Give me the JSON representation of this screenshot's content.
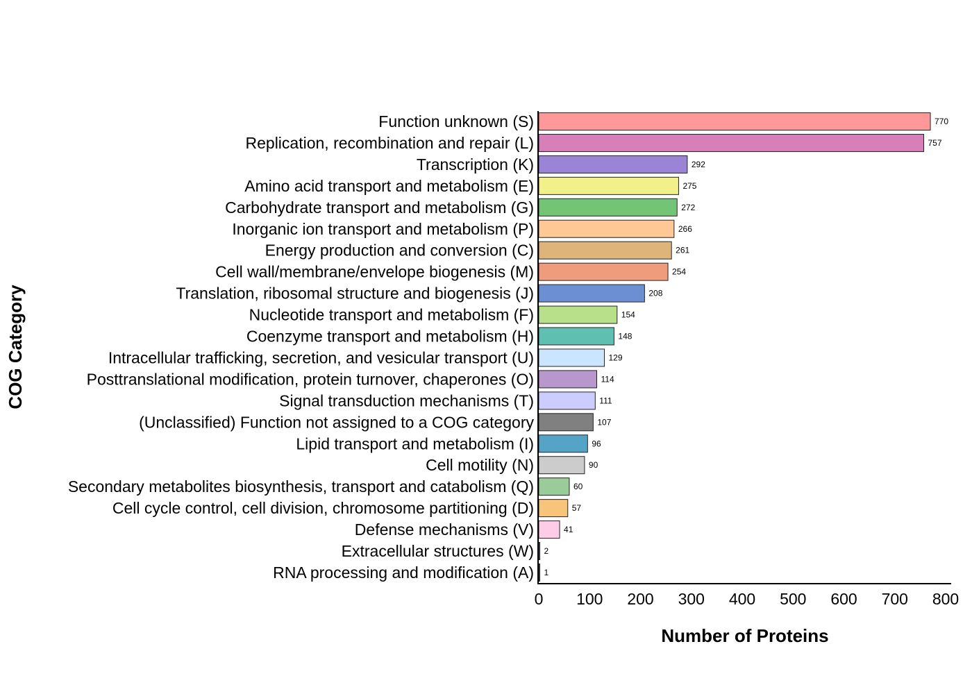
{
  "chart_data": {
    "type": "bar",
    "orientation": "horizontal",
    "title": "",
    "xlabel": "Number of Proteins",
    "ylabel": "COG Category",
    "xlim": [
      0,
      800
    ],
    "xticks": [
      "0",
      "100",
      "200",
      "300",
      "400",
      "500",
      "600",
      "700",
      "800"
    ],
    "grid": false,
    "categories": [
      "Function unknown (S)",
      "Replication, recombination and repair (L)",
      "Transcription (K)",
      "Amino acid transport and metabolism (E)",
      "Carbohydrate transport and metabolism (G)",
      "Inorganic ion transport and metabolism (P)",
      "Energy production and conversion (C)",
      "Cell wall/membrane/envelope biogenesis (M)",
      "Translation, ribosomal structure and biogenesis (J)",
      "Nucleotide transport and metabolism (F)",
      "Coenzyme transport and metabolism (H)",
      "Intracellular trafficking, secretion, and vesicular transport (U)",
      "Posttranslational modification, protein turnover, chaperones (O)",
      "Signal transduction mechanisms (T)",
      "(Unclassified) Function not assigned to a COG category",
      "Lipid transport and metabolism (I)",
      "Cell motility (N)",
      "Secondary metabolites biosynthesis, transport and catabolism (Q)",
      "Cell cycle control, cell division, chromosome partitioning (D)",
      "Defense mechanisms (V)",
      "Extracellular structures (W)",
      "RNA processing and modification (A)"
    ],
    "values": [
      770,
      757,
      292,
      275,
      272,
      266,
      261,
      254,
      208,
      154,
      148,
      129,
      114,
      111,
      107,
      96,
      90,
      60,
      57,
      41,
      2,
      1
    ],
    "data_labels": [
      "770",
      "757",
      "292",
      "275",
      "272",
      "266",
      "261",
      "254",
      "208",
      "154",
      "148",
      "129",
      "114",
      "111",
      "107",
      "96",
      "90",
      "60",
      "57",
      "41",
      "2",
      "1"
    ],
    "colors": [
      "#ff9999",
      "#d67fb8",
      "#9b84d6",
      "#f2f08a",
      "#74c476",
      "#ffc894",
      "#deb47a",
      "#ef9c7c",
      "#6b8fd2",
      "#b8e08a",
      "#5fbfb0",
      "#cce5ff",
      "#b897cc",
      "#ccccff",
      "#808080",
      "#56a3c8",
      "#cccccc",
      "#99cc99",
      "#f7c47a",
      "#ffcce8",
      "#7a6aa8",
      "#555555"
    ]
  }
}
